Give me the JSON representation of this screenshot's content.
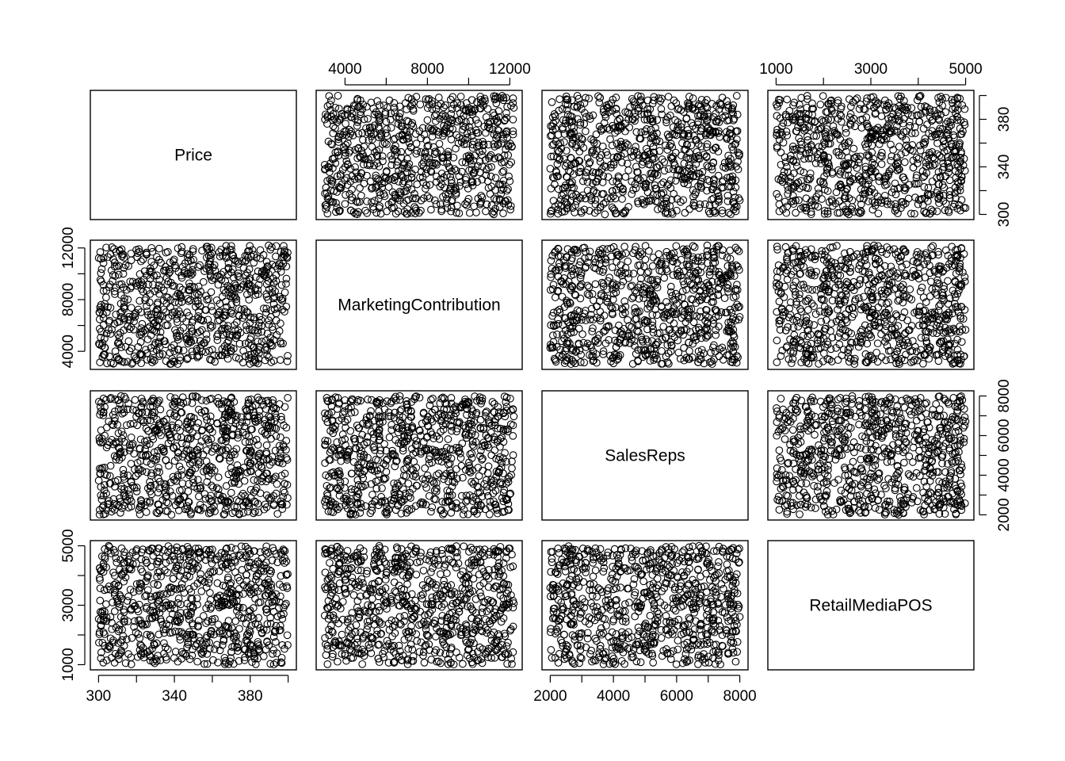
{
  "chart_data": {
    "type": "scatter",
    "subtype": "pairs-matrix",
    "variables": [
      {
        "name": "Price",
        "range": [
          300,
          400
        ],
        "ticks": [
          300,
          340,
          380
        ],
        "tick_labels": [
          "300",
          "340",
          "380"
        ],
        "extra_ticks": [
          320,
          360,
          400
        ]
      },
      {
        "name": "MarketingContribution",
        "range": [
          3000,
          12200
        ],
        "ticks": [
          4000,
          8000,
          12000
        ],
        "tick_labels": [
          "4000",
          "8000",
          "12000"
        ],
        "extra_ticks": [
          6000,
          10000
        ]
      },
      {
        "name": "SalesReps",
        "range": [
          2000,
          8000
        ],
        "ticks": [
          2000,
          4000,
          6000,
          8000
        ],
        "tick_labels": [
          "2000",
          "4000",
          "6000",
          "8000"
        ],
        "extra_ticks": [
          3000,
          5000,
          7000
        ]
      },
      {
        "name": "RetailMediaPOS",
        "range": [
          1000,
          5000
        ],
        "ticks": [
          1000,
          3000,
          5000
        ],
        "tick_labels": [
          "1000",
          "3000",
          "5000"
        ],
        "extra_ticks": [
          2000,
          4000
        ]
      }
    ],
    "points_per_panel": 800,
    "distribution": "uniform",
    "point_style": "open-circle",
    "colors": {
      "points": "#000000",
      "frame": "#000000",
      "background": "#ffffff"
    },
    "axis_placement": {
      "top": [
        "MarketingContribution",
        "RetailMediaPOS"
      ],
      "bottom": [
        "Price",
        "SalesReps"
      ],
      "left": [
        "MarketingContribution",
        "RetailMediaPOS"
      ],
      "right": [
        "Price",
        "SalesReps"
      ]
    },
    "grid": false,
    "legend": "none"
  }
}
